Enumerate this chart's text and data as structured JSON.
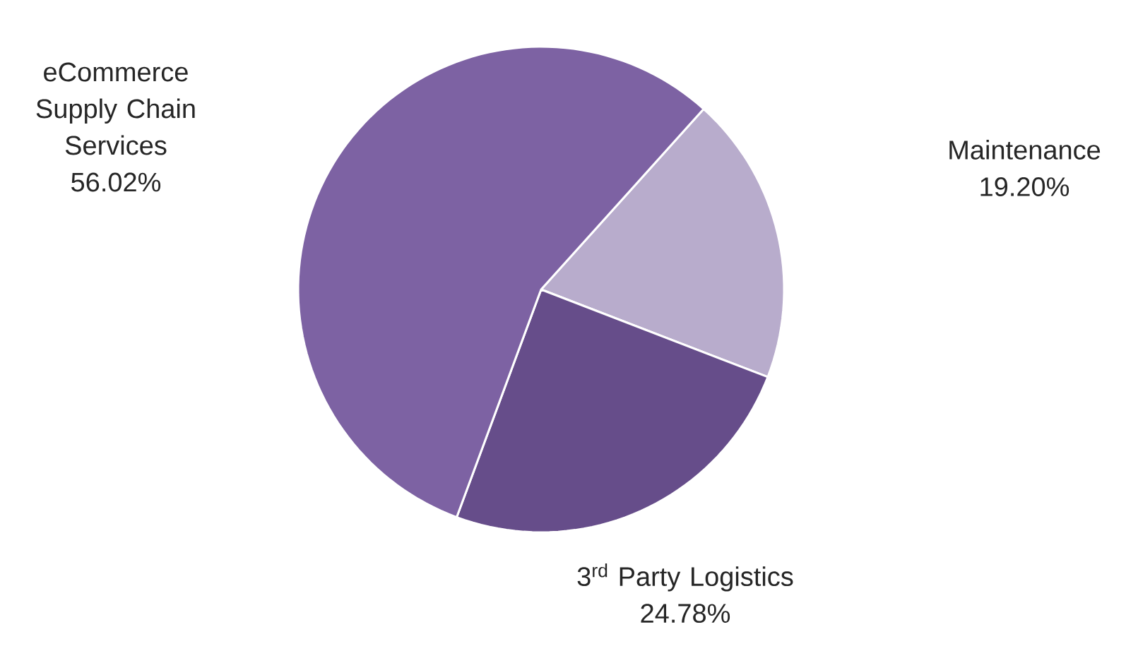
{
  "chart_data": {
    "type": "pie",
    "categories": [
      "Maintenance",
      "3$^{rd}$ Party Logistics",
      "eCommerce Supply Chain Services"
    ],
    "values": [
      19.2,
      24.78,
      56.02
    ],
    "value_labels": [
      "19.20%",
      "24.78%",
      "56.02%"
    ],
    "colors": [
      "#b8accc",
      "#664d8a",
      "#7d62a3"
    ]
  }
}
